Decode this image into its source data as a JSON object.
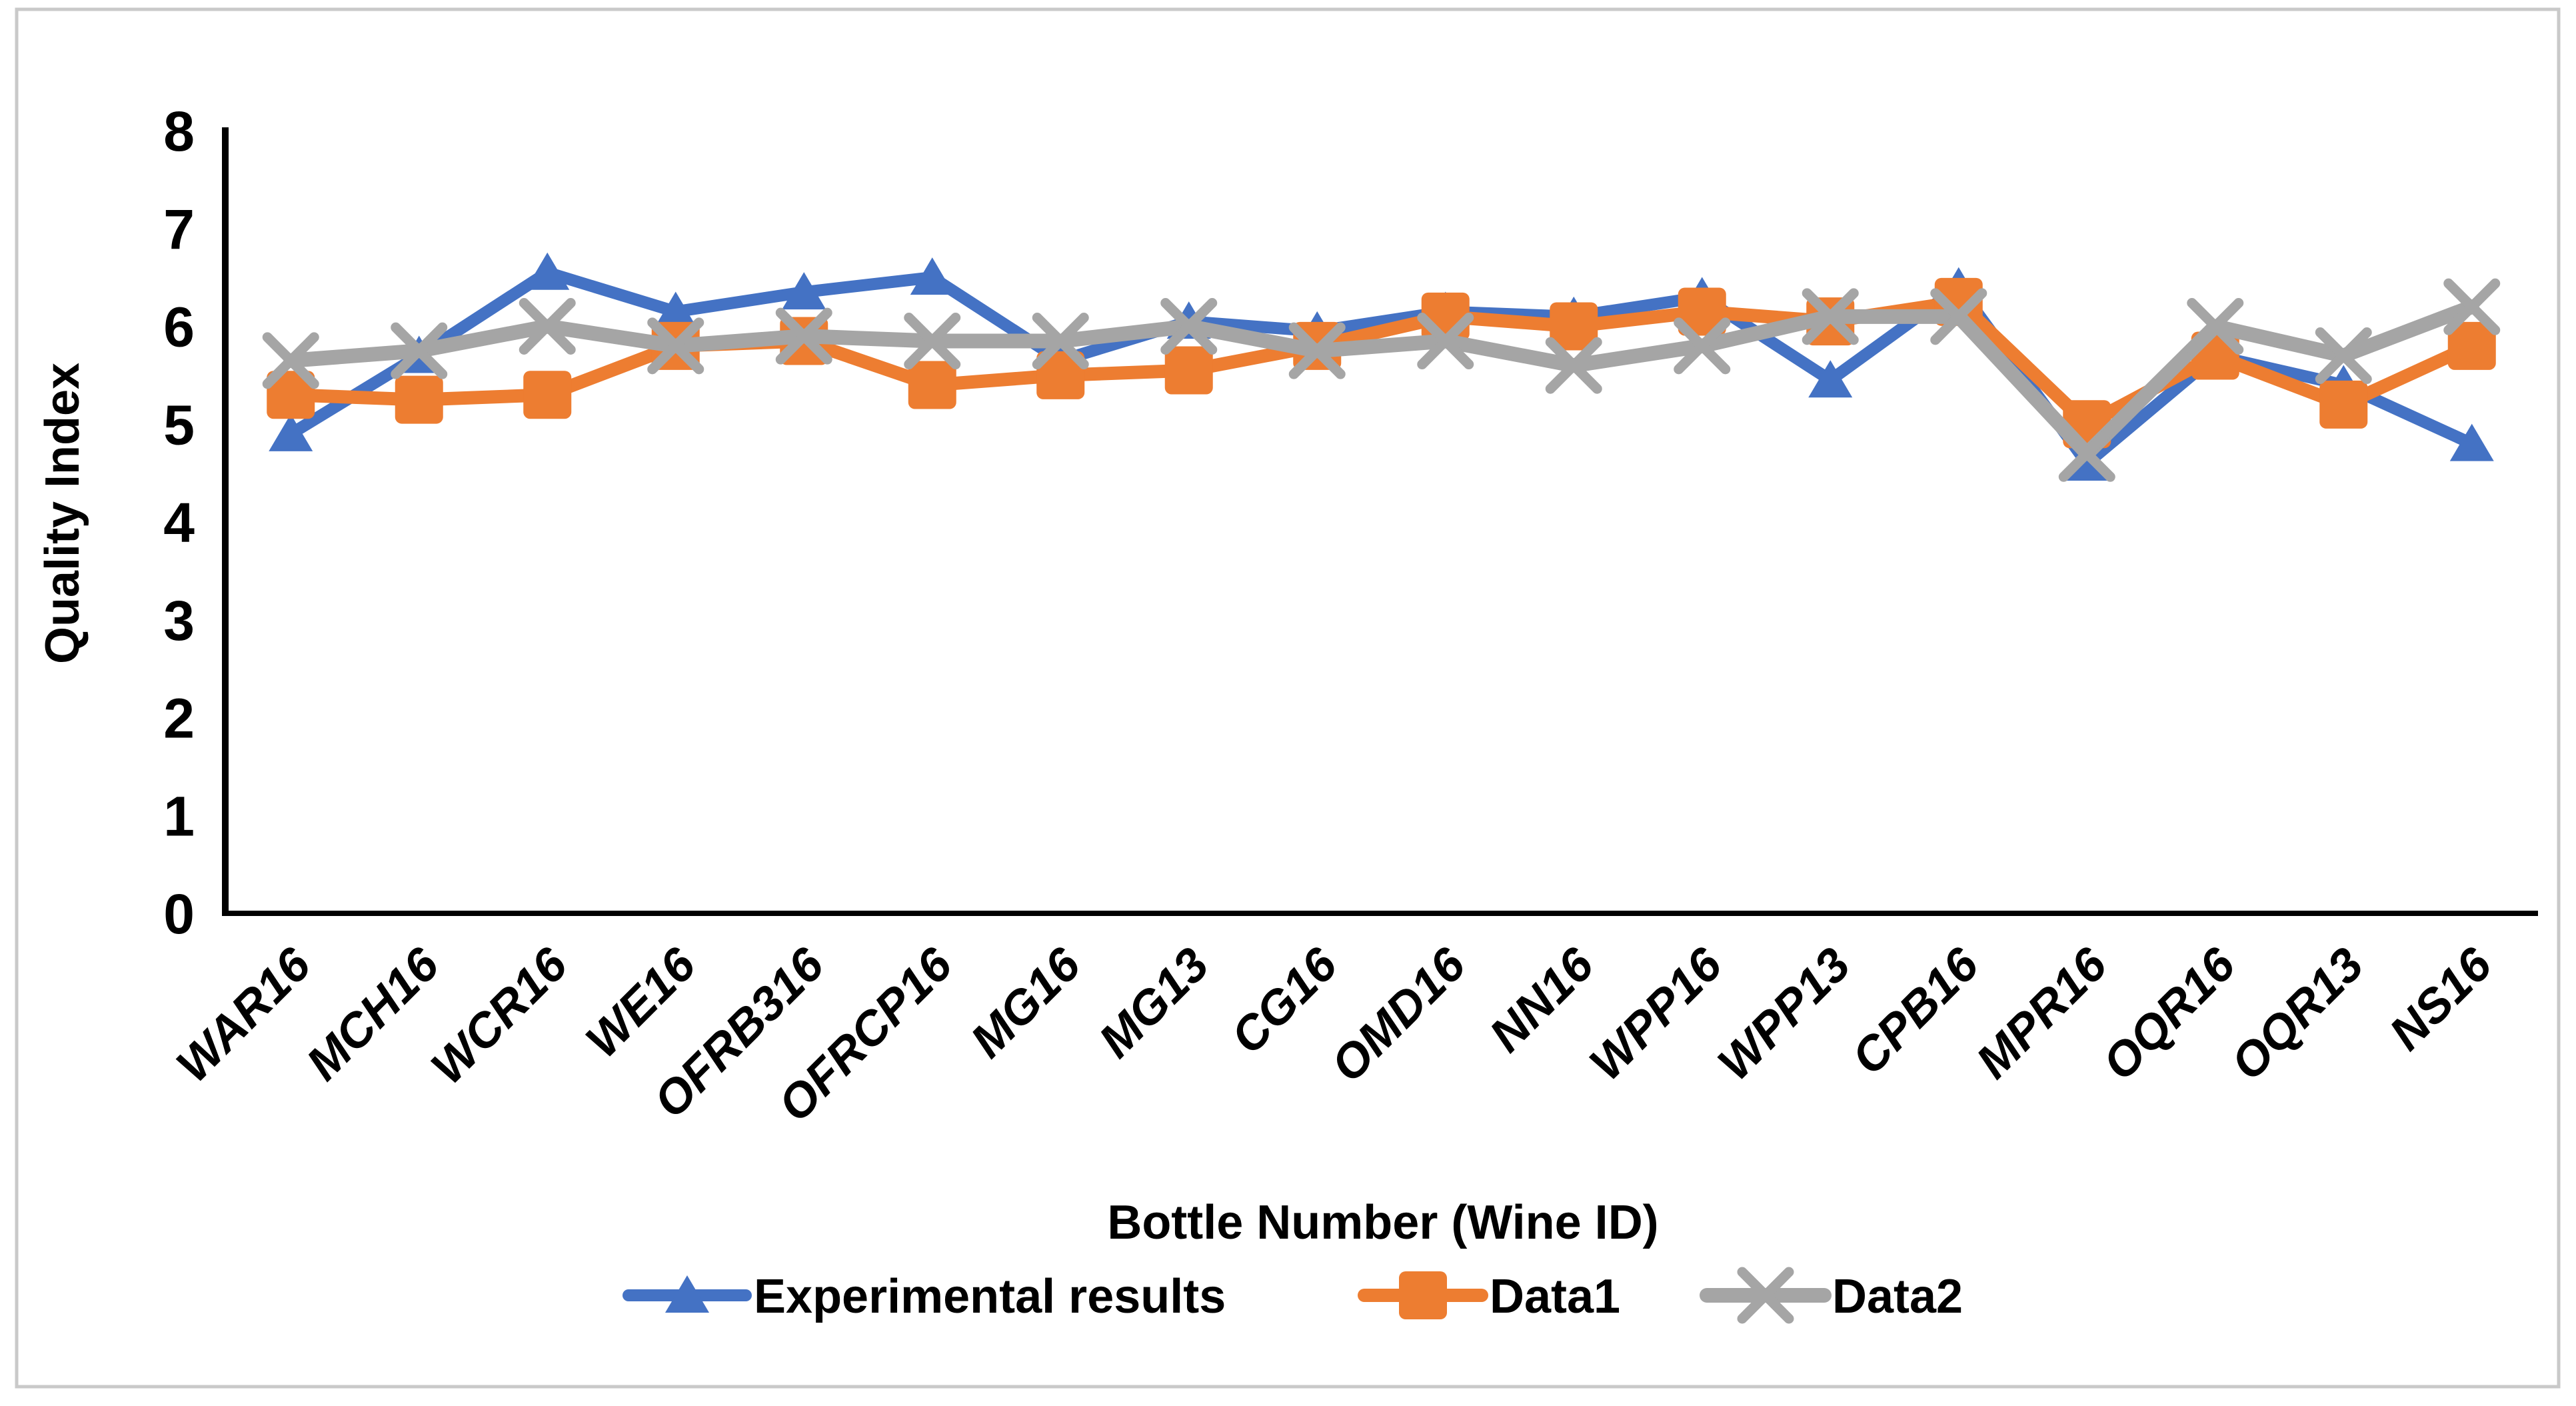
{
  "figure": {
    "background": "#FFFFFF",
    "border_color": "#C9C9C9",
    "axis_color": "#000000",
    "text_color": "#000000"
  },
  "chart_data": {
    "type": "line",
    "title": "",
    "xlabel": "Bottle Number (Wine ID)",
    "ylabel": "Quality Index",
    "ylim": [
      0,
      8
    ],
    "yticks": [
      0,
      1,
      2,
      3,
      4,
      5,
      6,
      7,
      8
    ],
    "grid": false,
    "legend_position": "bottom",
    "categories": [
      "WAR16",
      "MCH16",
      "WCR16",
      "WE16",
      "OFRB316",
      "OFRCP16",
      "MG16",
      "MG13",
      "CG16",
      "OMD16",
      "NN16",
      "WPP16",
      "WPP13",
      "CPB16",
      "MPR16",
      "OQR16",
      "OQR13",
      "NS16"
    ],
    "series": [
      {
        "name": "Experimental results",
        "color": "#4472C4",
        "marker": "triangle",
        "values": [
          4.9,
          5.7,
          6.55,
          6.15,
          6.35,
          6.5,
          5.65,
          6.05,
          5.95,
          6.15,
          6.1,
          6.3,
          5.45,
          6.4,
          4.6,
          5.7,
          5.4,
          4.8
        ]
      },
      {
        "name": "Data1",
        "color": "#ED7D31",
        "marker": "square",
        "values": [
          5.3,
          5.25,
          5.3,
          5.8,
          5.85,
          5.4,
          5.5,
          5.55,
          5.8,
          6.1,
          6.0,
          6.15,
          6.05,
          6.25,
          5.0,
          5.7,
          5.2,
          5.8
        ]
      },
      {
        "name": "Data2",
        "color": "#A5A5A5",
        "marker": "x",
        "values": [
          5.65,
          5.75,
          6.0,
          5.8,
          5.9,
          5.85,
          5.85,
          6.0,
          5.75,
          5.85,
          5.6,
          5.8,
          6.1,
          6.1,
          4.7,
          6.0,
          5.7,
          6.2
        ]
      }
    ]
  }
}
